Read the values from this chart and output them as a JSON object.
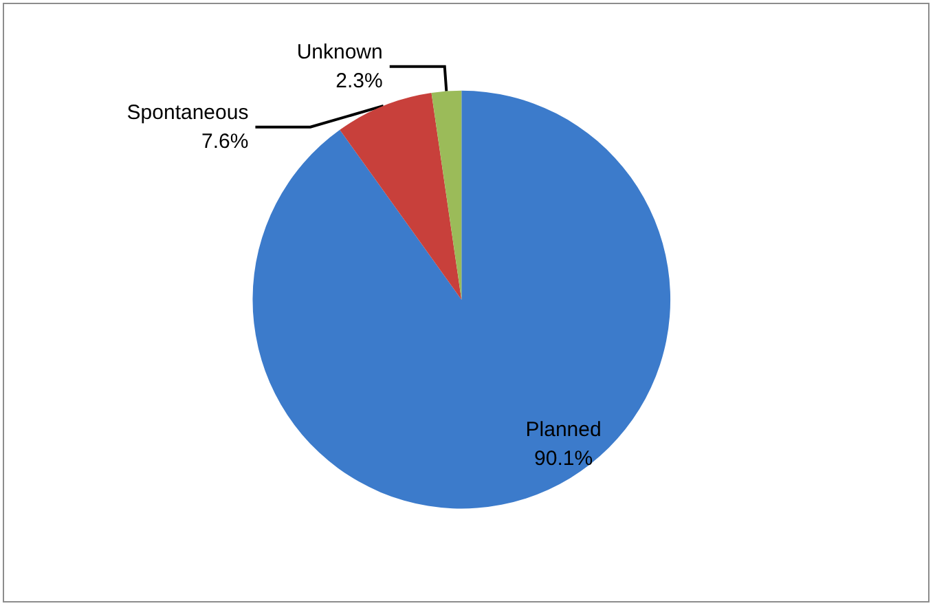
{
  "chart_data": {
    "type": "pie",
    "categories": [
      "Planned",
      "Spontaneous",
      "Unknown"
    ],
    "values": [
      90.1,
      7.6,
      2.3
    ],
    "value_labels": [
      "90.1%",
      "7.6%",
      "2.3%"
    ],
    "colors": [
      "#3c7bcb",
      "#c8403b",
      "#9bbb59"
    ],
    "legend": false
  }
}
